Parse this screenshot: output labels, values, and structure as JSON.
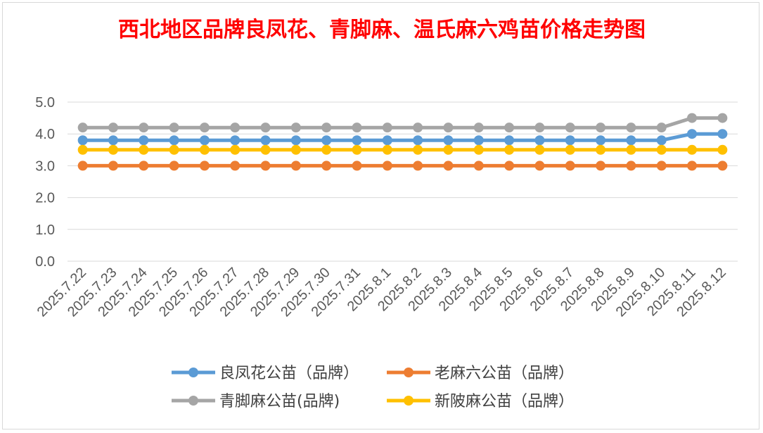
{
  "chart_data": {
    "type": "line",
    "title": "西北地区品牌良凤花、青脚麻、温氏麻六鸡苗价格走势图",
    "xlabel": "",
    "ylabel": "",
    "ylim": [
      0,
      5
    ],
    "yticks": [
      "0.0",
      "1.0",
      "2.0",
      "3.0",
      "4.0",
      "5.0"
    ],
    "grid": true,
    "legend_position": "bottom",
    "categories": [
      "2025.7.22",
      "2025.7.23",
      "2025.7.24",
      "2025.7.25",
      "2025.7.26",
      "2025.7.27",
      "2025.7.28",
      "2025.7.29",
      "2025.7.30",
      "2025.7.31",
      "2025.8.1",
      "2025.8.2",
      "2025.8.3",
      "2025.8.4",
      "2025.8.5",
      "2025.8.6",
      "2025.8.7",
      "2025.8.8",
      "2025.8.9",
      "2025.8.10",
      "2025.8.11",
      "2025.8.12"
    ],
    "series": [
      {
        "name": "良凤花公苗（品牌）",
        "color": "#5b9bd5",
        "values": [
          3.8,
          3.8,
          3.8,
          3.8,
          3.8,
          3.8,
          3.8,
          3.8,
          3.8,
          3.8,
          3.8,
          3.8,
          3.8,
          3.8,
          3.8,
          3.8,
          3.8,
          3.8,
          3.8,
          3.8,
          4.0,
          4.0
        ]
      },
      {
        "name": "老麻六公苗（品牌）",
        "color": "#ed7d31",
        "values": [
          3.0,
          3.0,
          3.0,
          3.0,
          3.0,
          3.0,
          3.0,
          3.0,
          3.0,
          3.0,
          3.0,
          3.0,
          3.0,
          3.0,
          3.0,
          3.0,
          3.0,
          3.0,
          3.0,
          3.0,
          3.0,
          3.0
        ]
      },
      {
        "name": "青脚麻公苗(品牌)",
        "color": "#a5a5a5",
        "values": [
          4.2,
          4.2,
          4.2,
          4.2,
          4.2,
          4.2,
          4.2,
          4.2,
          4.2,
          4.2,
          4.2,
          4.2,
          4.2,
          4.2,
          4.2,
          4.2,
          4.2,
          4.2,
          4.2,
          4.2,
          4.5,
          4.5
        ]
      },
      {
        "name": "新陂麻公苗（品牌）",
        "color": "#ffc000",
        "values": [
          3.5,
          3.5,
          3.5,
          3.5,
          3.5,
          3.5,
          3.5,
          3.5,
          3.5,
          3.5,
          3.5,
          3.5,
          3.5,
          3.5,
          3.5,
          3.5,
          3.5,
          3.5,
          3.5,
          3.5,
          3.5,
          3.5
        ]
      }
    ]
  }
}
